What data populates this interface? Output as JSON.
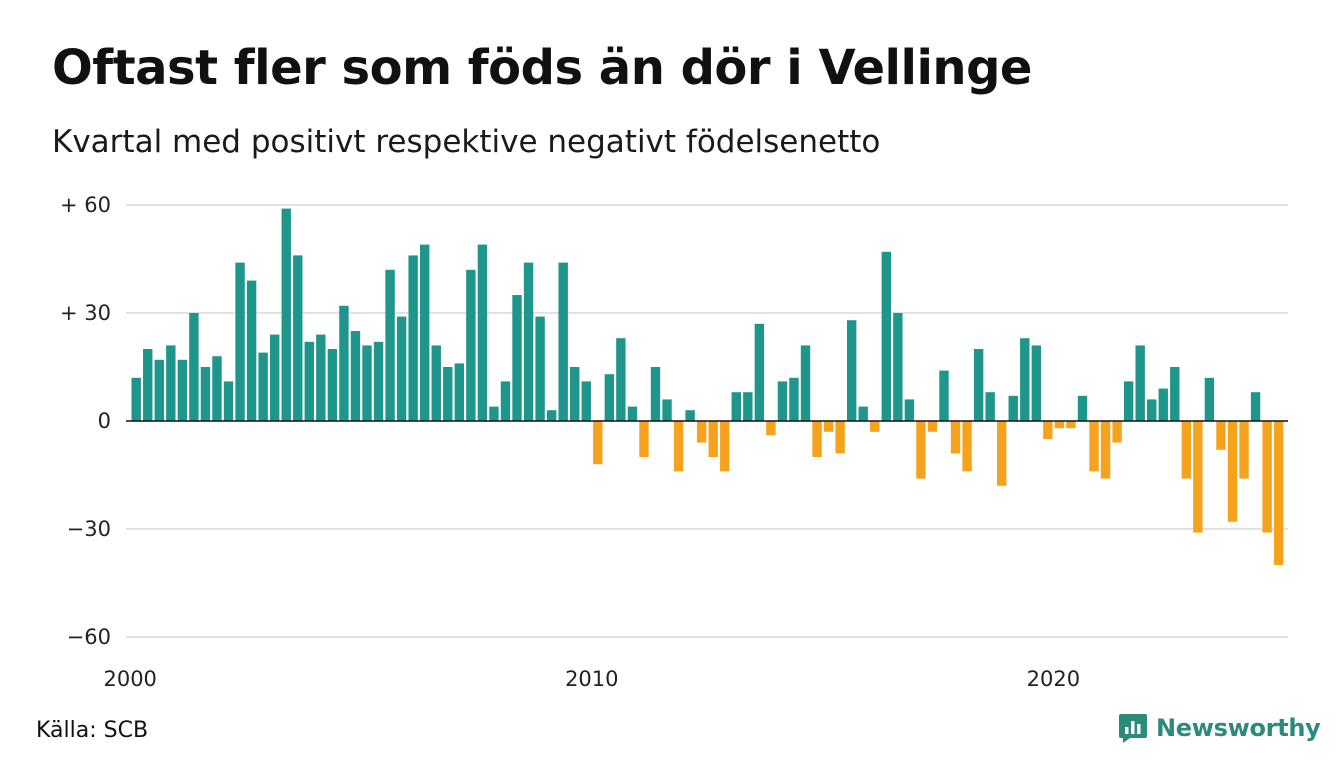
{
  "title": "Oftast fler som föds än dör i Vellinge",
  "subtitle": "Kvartal med positivt respektive negativt födelsenetto",
  "source": "Källa: SCB",
  "brand": {
    "name": "Newsworthy",
    "icon": "newsworthy-logo-icon"
  },
  "colors": {
    "positive": "#1f968b",
    "negative": "#f5a31f",
    "grid": "#d9d9d9",
    "zero_line": "#111111"
  },
  "chart_data": {
    "type": "bar",
    "title": "Oftast fler som föds än dör i Vellinge",
    "subtitle": "Kvartal med positivt respektive negativt födelsenetto",
    "xlabel": "",
    "ylabel": "",
    "x_start_year": 2000,
    "periods_per_year": 4,
    "ylim": [
      -60,
      60
    ],
    "y_ticks": [
      {
        "value": 60,
        "label": "+ 60"
      },
      {
        "value": 30,
        "label": "+ 30"
      },
      {
        "value": 0,
        "label": "0"
      },
      {
        "value": -30,
        "label": "−30"
      },
      {
        "value": -60,
        "label": "−60"
      }
    ],
    "x_ticks": [
      {
        "value": 2000,
        "label": "2000"
      },
      {
        "value": 2010,
        "label": "2010"
      },
      {
        "value": 2020,
        "label": "2020"
      }
    ],
    "grid": true,
    "legend": "none",
    "values": [
      12,
      20,
      17,
      21,
      17,
      30,
      15,
      18,
      11,
      44,
      39,
      19,
      24,
      59,
      46,
      22,
      24,
      20,
      32,
      25,
      21,
      22,
      42,
      29,
      46,
      49,
      21,
      15,
      16,
      42,
      49,
      4,
      11,
      35,
      44,
      29,
      3,
      44,
      15,
      11,
      -12,
      13,
      23,
      4,
      -10,
      15,
      6,
      -14,
      3,
      -6,
      -10,
      -14,
      8,
      8,
      27,
      -4,
      11,
      12,
      21,
      -10,
      -3,
      -9,
      28,
      4,
      -3,
      47,
      30,
      6,
      -16,
      -3,
      14,
      -9,
      -14,
      20,
      8,
      -18,
      7,
      23,
      21,
      -5,
      -2,
      -2,
      7,
      -14,
      -16,
      -6,
      11,
      21,
      6,
      9,
      15,
      -16,
      -31,
      12,
      -8,
      -28,
      -16,
      8,
      -31,
      -40
    ]
  }
}
